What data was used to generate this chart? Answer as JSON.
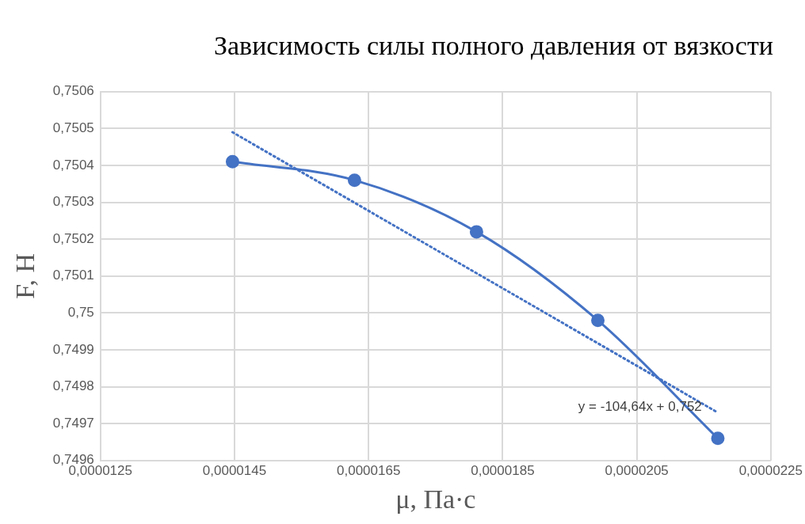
{
  "chart_data": {
    "type": "line",
    "title": "Зависимость силы полного давления от вязкости",
    "xlabel": "μ, Па·с",
    "ylabel": "F, Н",
    "series": [
      {
        "color": "#4472c4",
        "marker": "circle",
        "line_style": "solid",
        "x": [
          1.447e-05,
          1.629e-05,
          1.811e-05,
          1.992e-05,
          2.171e-05
        ],
        "values": [
          0.75041,
          0.75036,
          0.75022,
          0.74998,
          0.74966
        ]
      },
      {
        "color": "#4472c4",
        "marker": "none",
        "line_style": "dotted",
        "x": [
          1.447e-05,
          2.171e-05
        ],
        "values": [
          0.75049,
          0.74973
        ]
      }
    ],
    "annotations": [
      "y = -104,64x + 0,752"
    ],
    "xlim": [
      1.25e-05,
      2.25e-05
    ],
    "xticks": [
      {
        "value": 1.25e-05,
        "label": "0,0000125"
      },
      {
        "value": 1.45e-05,
        "label": "0,0000145"
      },
      {
        "value": 1.65e-05,
        "label": "0,0000165"
      },
      {
        "value": 1.85e-05,
        "label": "0,0000185"
      },
      {
        "value": 2.05e-05,
        "label": "0,0000205"
      },
      {
        "value": 2.25e-05,
        "label": "0,0000225"
      }
    ],
    "ylim": [
      0.7496,
      0.7506
    ],
    "yticks": [
      {
        "value": 0.7496,
        "label": "0,7496"
      },
      {
        "value": 0.7497,
        "label": "0,7497"
      },
      {
        "value": 0.7498,
        "label": "0,7498"
      },
      {
        "value": 0.7499,
        "label": "0,7499"
      },
      {
        "value": 0.75,
        "label": "0,75"
      },
      {
        "value": 0.7501,
        "label": "0,7501"
      },
      {
        "value": 0.7502,
        "label": "0,7502"
      },
      {
        "value": 0.7503,
        "label": "0,7503"
      },
      {
        "value": 0.7504,
        "label": "0,7504"
      },
      {
        "value": 0.7505,
        "label": "0,7505"
      },
      {
        "value": 0.7506,
        "label": "0,7506"
      }
    ],
    "grid": true,
    "legend": false
  }
}
